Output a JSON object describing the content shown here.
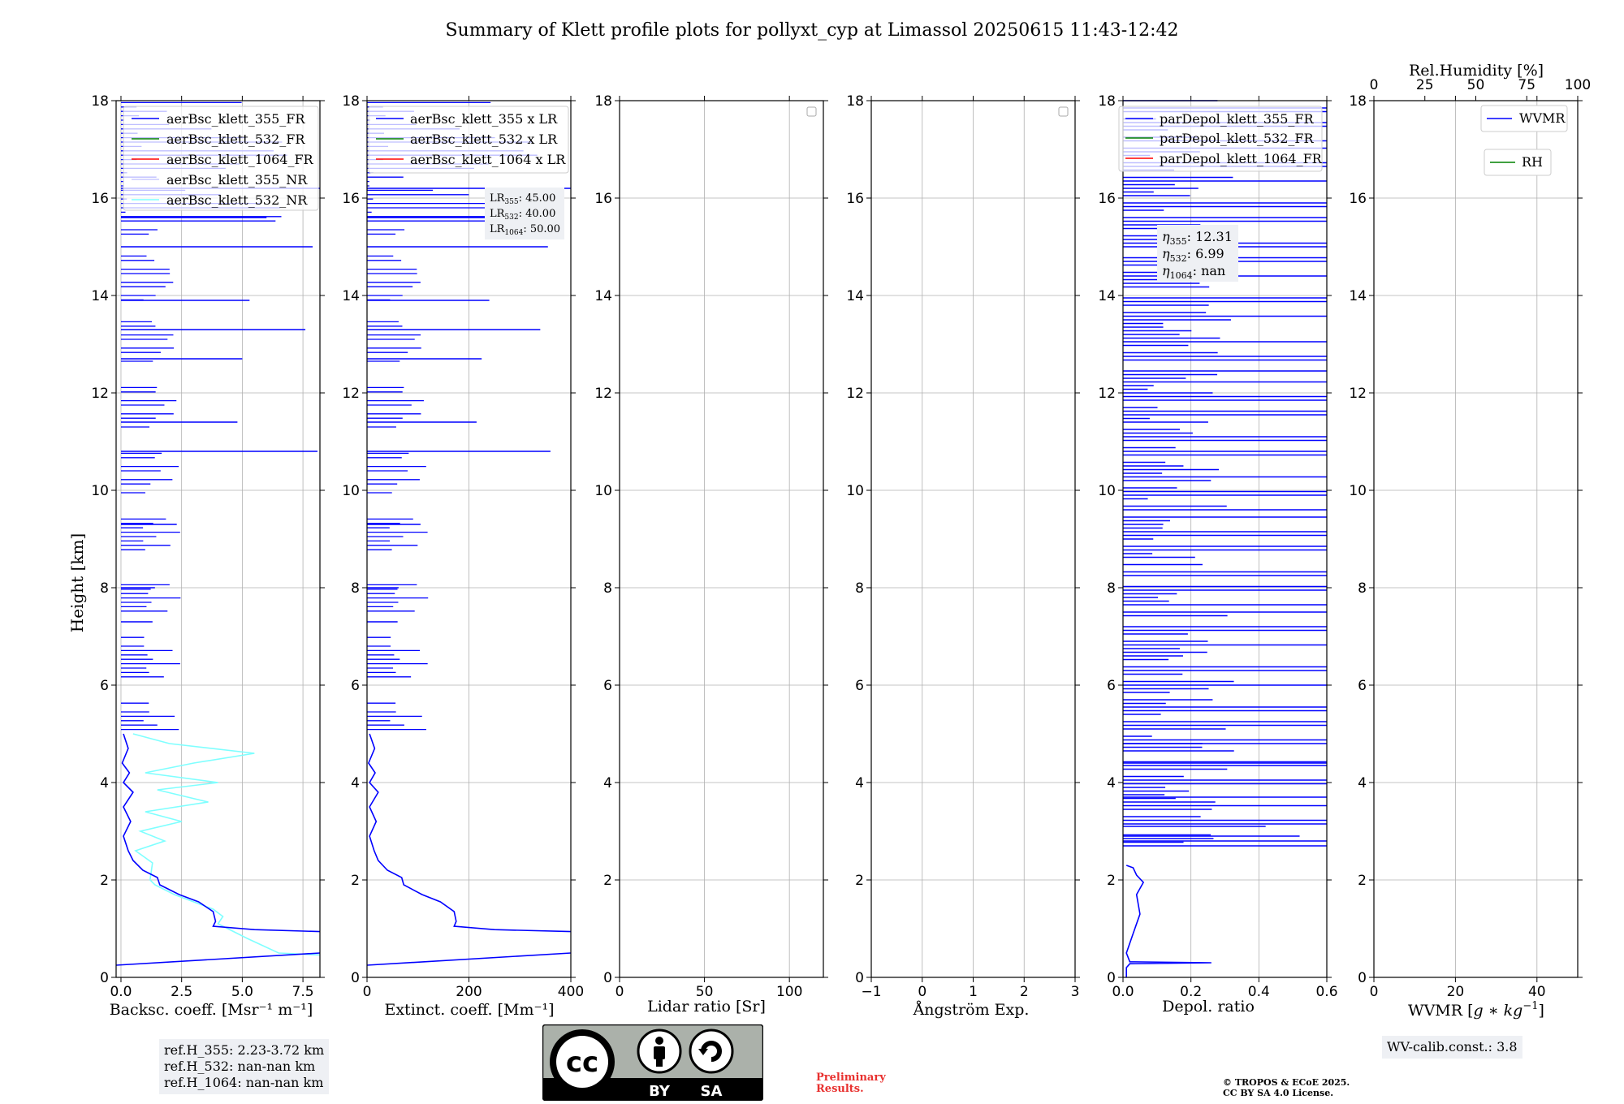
{
  "title": "Summary of Klett profile plots for pollyxt_cyp at Limassol 20250615 11:43-12:42",
  "colors": {
    "c355": "#0000ff",
    "c532": "#008000",
    "c1064": "#ff0000",
    "nr355": "#ccccff",
    "nr532": "#7fffff"
  },
  "chart_data": [
    {
      "type": "line",
      "name": "backscatter",
      "xlabel": "Backsc. coeff. [Msr⁻¹ m⁻¹]",
      "ylabel": "Height [km]",
      "xlim": [
        -0.2,
        8.2
      ],
      "ylim": [
        0,
        18
      ],
      "xticks": [
        "0.0",
        "2.5",
        "5.0",
        "7.5"
      ],
      "xtick_values": [
        0,
        2.5,
        5,
        7.5
      ],
      "yticks": [
        "0",
        "2",
        "4",
        "6",
        "8",
        "10",
        "12",
        "14",
        "16",
        "18"
      ],
      "legend": [
        "aerBsc_klett_355_FR",
        "aerBsc_klett_532_FR",
        "aerBsc_klett_1064_FR",
        "aerBsc_klett_355_NR",
        "aerBsc_klett_532_NR"
      ],
      "series": [
        {
          "name": "aerBsc_klett_532_NR",
          "points": [
            [
              0.5,
              5
            ],
            [
              2,
              4.8
            ],
            [
              5.5,
              4.6
            ],
            [
              3,
              4.4
            ],
            [
              1,
              4.2
            ],
            [
              4,
              4
            ],
            [
              1.5,
              3.85
            ],
            [
              3.6,
              3.6
            ],
            [
              1,
              3.4
            ],
            [
              2.5,
              3.2
            ],
            [
              0.8,
              3
            ],
            [
              1.8,
              2.8
            ],
            [
              0.6,
              2.6
            ],
            [
              1.3,
              2.35
            ],
            [
              1.2,
              2.0
            ],
            [
              1.4,
              1.9
            ],
            [
              2.2,
              1.7
            ],
            [
              3.0,
              1.55
            ],
            [
              3.8,
              1.4
            ],
            [
              4.2,
              1.25
            ],
            [
              4.0,
              1.1
            ],
            [
              4.4,
              1.0
            ],
            [
              5.2,
              0.8
            ],
            [
              6.5,
              0.5
            ],
            [
              8.2,
              0.46
            ]
          ]
        },
        {
          "name": "aerBsc_klett_355_FR",
          "points": [
            [
              0.1,
              5
            ],
            [
              0.3,
              4.7
            ],
            [
              0.05,
              4.4
            ],
            [
              0.35,
              4.2
            ],
            [
              0.1,
              4.0
            ],
            [
              0.5,
              3.8
            ],
            [
              0.1,
              3.5
            ],
            [
              0.4,
              3.2
            ],
            [
              0.1,
              2.9
            ],
            [
              0.3,
              2.6
            ],
            [
              0.5,
              2.4
            ],
            [
              0.9,
              2.2
            ],
            [
              1.5,
              2.05
            ],
            [
              1.6,
              1.9
            ],
            [
              2.4,
              1.7
            ],
            [
              3.2,
              1.55
            ],
            [
              3.8,
              1.35
            ],
            [
              3.9,
              1.15
            ],
            [
              3.8,
              1.05
            ],
            [
              5.5,
              0.98
            ],
            [
              8.2,
              0.94
            ]
          ]
        },
        {
          "name": "aerBsc_klett_355_FR_low",
          "points": [
            [
              -0.2,
              0.25
            ],
            [
              8.2,
              0.5
            ]
          ]
        }
      ],
      "spikes": [
        [
          10.8,
          8.1
        ],
        [
          11.4,
          4.8
        ],
        [
          13.3,
          7.6
        ],
        [
          12.7,
          5.0
        ],
        [
          13.9,
          5.3
        ],
        [
          15.0,
          7.9
        ],
        [
          15.6,
          6.0
        ],
        [
          16.2,
          8.2
        ],
        [
          9.3,
          2.3
        ],
        [
          7.3,
          1.3
        ],
        [
          8.0,
          1.4
        ]
      ],
      "reference_box": [
        "ref.H_355: 2.23-3.72 km",
        "ref.H_532: nan-nan km",
        "ref.H_1064: nan-nan km"
      ]
    },
    {
      "type": "line",
      "name": "extinction",
      "xlabel": "Extinct. coeff. [Mm⁻¹]",
      "xlim": [
        0,
        400
      ],
      "ylim": [
        0,
        18
      ],
      "xticks": [
        "0",
        "200",
        "400"
      ],
      "xtick_values": [
        0,
        200,
        400
      ],
      "yticks": [
        "0",
        "2",
        "4",
        "6",
        "8",
        "10",
        "12",
        "14",
        "16",
        "18"
      ],
      "legend": [
        "aerBsc_klett_355 x LR",
        "aerBsc_klett_532 x LR",
        "aerBsc_klett_1064 x LR"
      ],
      "annotations": [
        "LR",
        "355",
        ": 45.00",
        "LR",
        "532",
        ": 40.00",
        "LR",
        "1064",
        ": 50.00"
      ],
      "series": [
        {
          "name": "aerBsc_klett_355 x LR",
          "points": [
            [
              5,
              5
            ],
            [
              15,
              4.7
            ],
            [
              3,
              4.4
            ],
            [
              16,
              4.2
            ],
            [
              5,
              4.0
            ],
            [
              22,
              3.8
            ],
            [
              5,
              3.5
            ],
            [
              18,
              3.2
            ],
            [
              5,
              2.9
            ],
            [
              14,
              2.6
            ],
            [
              22,
              2.4
            ],
            [
              40,
              2.2
            ],
            [
              68,
              2.05
            ],
            [
              72,
              1.9
            ],
            [
              108,
              1.7
            ],
            [
              144,
              1.55
            ],
            [
              171,
              1.35
            ],
            [
              175,
              1.15
            ],
            [
              171,
              1.05
            ],
            [
              250,
              0.98
            ],
            [
              400,
              0.94
            ]
          ]
        },
        {
          "name": "aerBsc_klett_355 x LR low",
          "points": [
            [
              0,
              0.25
            ],
            [
              400,
              0.5
            ]
          ]
        }
      ],
      "spikes": [
        [
          10.8,
          360
        ],
        [
          11.4,
          215
        ],
        [
          13.3,
          340
        ],
        [
          12.7,
          225
        ],
        [
          13.9,
          240
        ],
        [
          15.0,
          355
        ],
        [
          15.6,
          270
        ],
        [
          16.2,
          400
        ],
        [
          9.3,
          105
        ],
        [
          7.3,
          60
        ],
        [
          8.0,
          62
        ]
      ]
    },
    {
      "type": "line",
      "name": "lidar-ratio",
      "xlabel": "Lidar ratio [Sr]",
      "xlim": [
        0,
        120
      ],
      "ylim": [
        0,
        18
      ],
      "xticks": [
        "0",
        "50",
        "100"
      ],
      "xtick_values": [
        0,
        50,
        100
      ],
      "yticks": [
        "0",
        "2",
        "4",
        "6",
        "8",
        "10",
        "12",
        "14",
        "16",
        "18"
      ],
      "series": []
    },
    {
      "type": "line",
      "name": "angstrom",
      "xlabel": "Ångström Exp.",
      "xlim": [
        -1,
        3
      ],
      "ylim": [
        0,
        18
      ],
      "xticks": [
        "−1",
        "0",
        "1",
        "2",
        "3"
      ],
      "xtick_values": [
        -1,
        0,
        1,
        2,
        3
      ],
      "yticks": [
        "0",
        "2",
        "4",
        "6",
        "8",
        "10",
        "12",
        "14",
        "16",
        "18"
      ],
      "series": []
    },
    {
      "type": "line",
      "name": "depol",
      "xlabel": "Depol. ratio",
      "xlim": [
        0,
        0.6
      ],
      "ylim": [
        0,
        18
      ],
      "xticks": [
        "0.0",
        "0.2",
        "0.4",
        "0.6"
      ],
      "xtick_values": [
        0,
        0.2,
        0.4,
        0.6
      ],
      "yticks": [
        "0",
        "2",
        "4",
        "6",
        "8",
        "10",
        "12",
        "14",
        "16",
        "18"
      ],
      "legend": [
        "parDepol_klett_355_FR",
        "parDepol_klett_532_FR",
        "parDepol_klett_1064_FR"
      ],
      "annotations": [
        "η",
        "355",
        ": 12.31",
        "η",
        "532",
        ": 6.99",
        "η",
        "1064",
        ": nan"
      ],
      "series": [
        {
          "name": "parDepol_klett_355_FR",
          "points": [
            [
              0.01,
              0
            ],
            [
              0.01,
              0.2
            ],
            [
              0.02,
              0.28
            ],
            [
              0.26,
              0.3
            ],
            [
              0.02,
              0.32
            ],
            [
              0.01,
              0.5
            ],
            [
              0.03,
              0.9
            ],
            [
              0.05,
              1.3
            ],
            [
              0.04,
              1.7
            ],
            [
              0.06,
              1.95
            ],
            [
              0.04,
              2.1
            ],
            [
              0.03,
              2.25
            ],
            [
              0.01,
              2.3
            ]
          ]
        }
      ]
    },
    {
      "type": "line",
      "name": "wvmr",
      "xlabel": "WVMR [g*kg⁻¹]",
      "xlabel_plain": "WVMR [",
      "xlabel_unit": "g ∗ kg",
      "xlabel_exp": "−1",
      "xlabel_end": "]",
      "top_label": "Rel.Humidity [%]",
      "xlim": [
        0,
        50
      ],
      "ylim": [
        0,
        18
      ],
      "xticks": [
        "0",
        "20",
        "40"
      ],
      "xtick_values": [
        0,
        20,
        40
      ],
      "top_ticks": [
        "0",
        "25",
        "50",
        "75",
        "100"
      ],
      "top_tick_values": [
        0,
        25,
        50,
        75,
        100
      ],
      "yticks": [
        "0",
        "2",
        "4",
        "6",
        "8",
        "10",
        "12",
        "14",
        "16",
        "18"
      ],
      "legend": [
        "WVMR",
        "RH"
      ],
      "series": [],
      "calibration": "WV-calib.const.: 3.8"
    }
  ],
  "footer": {
    "cc_by": "BY",
    "cc_sa": "SA",
    "preliminary": [
      "Preliminary",
      "Results."
    ],
    "copyright": [
      "© TROPOS & ECoE 2025.",
      "CC BY SA 4.0 License."
    ]
  }
}
